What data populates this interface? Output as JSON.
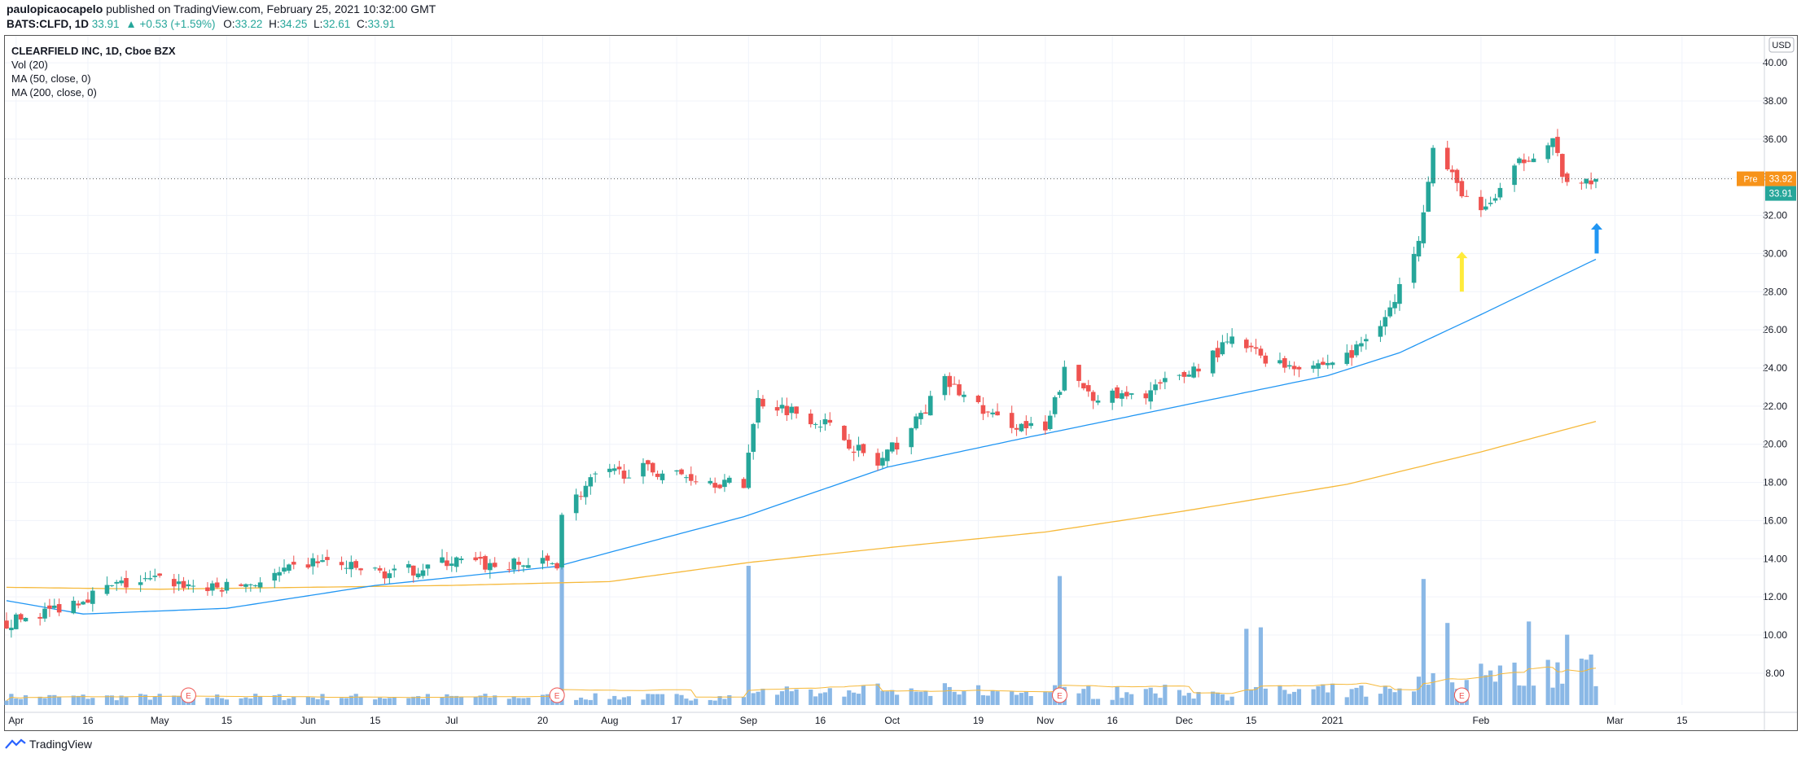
{
  "header": {
    "publisher": "paulopicaocapelo",
    "published_text": " published on TradingView.com, February 25, 2021 10:32:00 GMT",
    "symbol": "BATS:CLFD, 1D",
    "last": "33.91",
    "change": "▲ +0.53 (+1.59%)",
    "o_label": "O:",
    "o_val": "33.22",
    "h_label": "H:",
    "h_val": "34.25",
    "l_label": "L:",
    "l_val": "32.61",
    "c_label": "C:",
    "c_val": "33.91"
  },
  "legend": {
    "title": "CLEARFIELD INC, 1D, Cboe BZX",
    "vol": "Vol (20)",
    "ma50": "MA (50, close, 0)",
    "ma200": "MA (200, close, 0)"
  },
  "price_scale": {
    "currency": "USD",
    "pre_label": "Pre",
    "pre_value": "33.92",
    "last_value": "33.91"
  },
  "footer": {
    "brand": "TradingView"
  },
  "colors": {
    "up": "#26a69a",
    "down": "#ef5350",
    "ma50": "#2196f3",
    "ma200": "#f6b93b",
    "volume": "#8ab8e6",
    "pre": "#f7931a",
    "grid": "#f0f3fa"
  },
  "chart_data": {
    "type": "candlestick",
    "title": "CLEARFIELD INC, 1D, Cboe BZX",
    "ylim": [
      6.5,
      41.5
    ],
    "y_ticks": [
      "8.00",
      "10.00",
      "12.00",
      "14.00",
      "16.00",
      "18.00",
      "20.00",
      "22.00",
      "24.00",
      "26.00",
      "28.00",
      "30.00",
      "32.00",
      "34.00",
      "36.00",
      "38.00",
      "40.00"
    ],
    "x_ticks": [
      {
        "label": "Apr",
        "date": "2020-04-01"
      },
      {
        "label": "16",
        "date": "2020-04-16"
      },
      {
        "label": "May",
        "date": "2020-05-01"
      },
      {
        "label": "15",
        "date": "2020-05-15"
      },
      {
        "label": "Jun",
        "date": "2020-06-01"
      },
      {
        "label": "15",
        "date": "2020-06-15"
      },
      {
        "label": "Jul",
        "date": "2020-07-01"
      },
      {
        "label": "20",
        "date": "2020-07-20"
      },
      {
        "label": "Aug",
        "date": "2020-08-03"
      },
      {
        "label": "17",
        "date": "2020-08-17"
      },
      {
        "label": "Sep",
        "date": "2020-09-01"
      },
      {
        "label": "16",
        "date": "2020-09-16"
      },
      {
        "label": "Oct",
        "date": "2020-10-01"
      },
      {
        "label": "19",
        "date": "2020-10-19"
      },
      {
        "label": "Nov",
        "date": "2020-11-02"
      },
      {
        "label": "16",
        "date": "2020-11-16"
      },
      {
        "label": "Dec",
        "date": "2020-12-01"
      },
      {
        "label": "15",
        "date": "2020-12-15"
      },
      {
        "label": "2021",
        "date": "2021-01-01"
      },
      {
        "label": "Feb",
        "date": "2021-02-01"
      },
      {
        "label": "Mar",
        "date": "2021-03-01"
      },
      {
        "label": "15",
        "date": "2021-03-15"
      }
    ],
    "price_keyframes": [
      [
        "2020-03-30",
        10.6
      ],
      [
        "2020-04-08",
        11.3
      ],
      [
        "2020-04-22",
        12.6
      ],
      [
        "2020-05-01",
        12.9
      ],
      [
        "2020-05-12",
        12.4
      ],
      [
        "2020-05-22",
        12.8
      ],
      [
        "2020-06-03",
        13.9
      ],
      [
        "2020-06-10",
        13.5
      ],
      [
        "2020-06-19",
        13.2
      ],
      [
        "2020-07-01",
        13.9
      ],
      [
        "2020-07-10",
        13.6
      ],
      [
        "2020-07-23",
        13.8
      ],
      [
        "2020-07-24",
        16.4
      ],
      [
        "2020-07-31",
        18.3
      ],
      [
        "2020-08-10",
        18.7
      ],
      [
        "2020-08-20",
        18.3
      ],
      [
        "2020-08-31",
        17.8
      ],
      [
        "2020-09-01",
        19.8
      ],
      [
        "2020-09-03",
        22.3
      ],
      [
        "2020-09-10",
        21.8
      ],
      [
        "2020-09-17",
        21.1
      ],
      [
        "2020-09-28",
        18.9
      ],
      [
        "2020-10-06",
        21.2
      ],
      [
        "2020-10-12",
        23.3
      ],
      [
        "2020-10-22",
        21.4
      ],
      [
        "2020-11-02",
        20.6
      ],
      [
        "2020-11-06",
        23.8
      ],
      [
        "2020-11-12",
        22.6
      ],
      [
        "2020-11-20",
        22.4
      ],
      [
        "2020-12-01",
        23.6
      ],
      [
        "2020-12-11",
        25.4
      ],
      [
        "2020-12-21",
        24.2
      ],
      [
        "2020-12-30",
        24.2
      ],
      [
        "2021-01-05",
        24.7
      ],
      [
        "2021-01-14",
        27.4
      ],
      [
        "2021-01-19",
        31.0
      ],
      [
        "2021-01-22",
        35.5
      ],
      [
        "2021-01-27",
        33.6
      ],
      [
        "2021-02-01",
        32.0
      ],
      [
        "2021-02-10",
        35.0
      ],
      [
        "2021-02-16",
        35.9
      ],
      [
        "2021-02-19",
        33.4
      ],
      [
        "2021-02-25",
        33.9
      ]
    ],
    "last_price": 33.91,
    "ma50_keyframes": [
      [
        "2020-03-30",
        11.8
      ],
      [
        "2020-04-15",
        11.1
      ],
      [
        "2020-05-15",
        11.4
      ],
      [
        "2020-06-15",
        12.6
      ],
      [
        "2020-07-23",
        13.6
      ],
      [
        "2020-08-31",
        16.2
      ],
      [
        "2020-09-30",
        18.8
      ],
      [
        "2020-10-30",
        20.4
      ],
      [
        "2020-11-30",
        22.0
      ],
      [
        "2020-12-31",
        23.6
      ],
      [
        "2021-01-15",
        24.8
      ],
      [
        "2021-02-01",
        26.8
      ],
      [
        "2021-02-25",
        29.7
      ]
    ],
    "ma200_keyframes": [
      [
        "2020-03-30",
        12.5
      ],
      [
        "2020-05-01",
        12.4
      ],
      [
        "2020-07-01",
        12.6
      ],
      [
        "2020-08-03",
        12.8
      ],
      [
        "2020-09-01",
        13.8
      ],
      [
        "2020-10-01",
        14.6
      ],
      [
        "2020-11-02",
        15.4
      ],
      [
        "2020-12-01",
        16.5
      ],
      [
        "2021-01-04",
        17.9
      ],
      [
        "2021-02-01",
        19.6
      ],
      [
        "2021-02-25",
        21.2
      ]
    ],
    "volume_spikes": [
      [
        "2020-07-24",
        1.0
      ],
      [
        "2020-09-01",
        0.95
      ],
      [
        "2020-11-05",
        0.88
      ],
      [
        "2021-01-20",
        0.86
      ],
      [
        "2020-12-14",
        0.52
      ],
      [
        "2020-12-17",
        0.53
      ],
      [
        "2021-01-25",
        0.56
      ],
      [
        "2021-02-11",
        0.57
      ],
      [
        "2021-02-19",
        0.48
      ]
    ],
    "earnings_dates": [
      "2020-05-07",
      "2020-07-23",
      "2020-11-05",
      "2021-01-28"
    ],
    "annotations": [
      {
        "type": "arrow",
        "color": "#ffeb3b",
        "date": "2021-01-28",
        "from": 28.0,
        "to": 30.1
      },
      {
        "type": "arrow",
        "color": "#2196f3",
        "date": "2021-02-25",
        "from": 30.0,
        "to": 31.6
      }
    ],
    "pre_market_price": 33.92
  }
}
